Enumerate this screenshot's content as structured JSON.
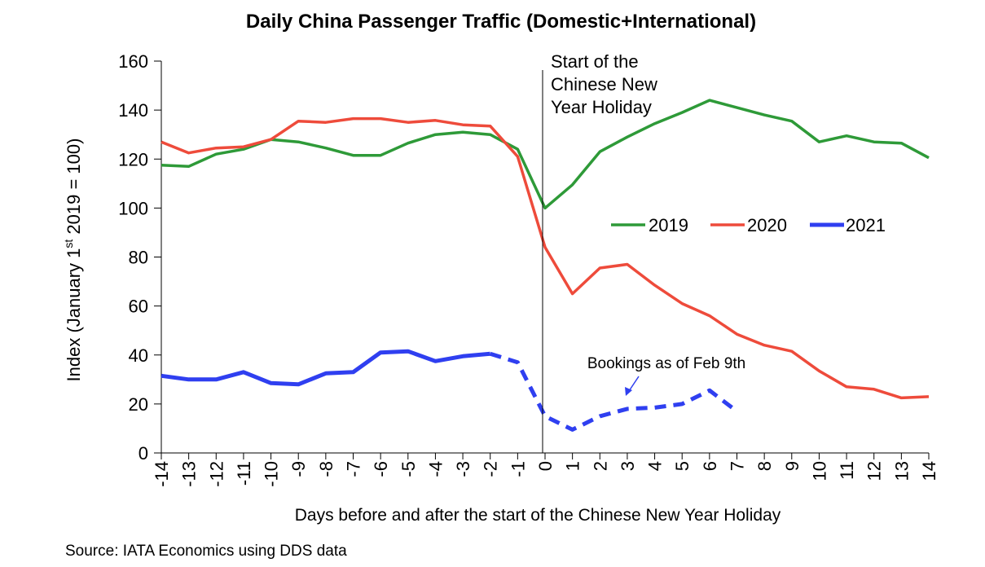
{
  "chart_data": {
    "type": "line",
    "title": "Daily China Passenger Traffic (Domestic+International)",
    "xlabel": "Days before and after the start of the Chinese New Year Holiday",
    "ylabel_parts": {
      "pre": "Index (January 1",
      "sup": "st",
      "post": " 2019 = 100)"
    },
    "ylim": [
      0,
      160
    ],
    "yticks": [
      "0",
      "20",
      "40",
      "60",
      "80",
      "100",
      "120",
      "140",
      "160"
    ],
    "x": [
      -14,
      -13,
      -12,
      -11,
      -10,
      -9,
      -8,
      -7,
      -6,
      -5,
      -4,
      -3,
      -2,
      -1,
      0,
      1,
      2,
      3,
      4,
      5,
      6,
      7,
      8,
      9,
      10,
      11,
      12,
      13,
      14
    ],
    "xticks": [
      "-14",
      "-13",
      "-12",
      "-11",
      "-10",
      "-9",
      "-8",
      "-7",
      "-6",
      "-5",
      "-4",
      "-3",
      "-2",
      "-1",
      "0",
      "1",
      "2",
      "3",
      "4",
      "5",
      "6",
      "7",
      "8",
      "9",
      "10",
      "11",
      "12",
      "13",
      "14"
    ],
    "series": [
      {
        "name": "2019",
        "color": "#2e9a38",
        "values": [
          117.5,
          117,
          122,
          124,
          128,
          127,
          124.5,
          121.5,
          121.5,
          126.5,
          130,
          131,
          130,
          124,
          100,
          109.5,
          123,
          129,
          134.5,
          139,
          144,
          141,
          138,
          135.5,
          127,
          129.5,
          127,
          126.5,
          120.5
        ]
      },
      {
        "name": "2020",
        "color": "#ee4b3b",
        "values": [
          127,
          122.5,
          124.5,
          125,
          128,
          135.5,
          135,
          136.5,
          136.5,
          135,
          135.8,
          134,
          133.5,
          121,
          84,
          65,
          75.5,
          77,
          68.5,
          61,
          56,
          48.5,
          44,
          41.5,
          33.5,
          27,
          26,
          22.5,
          23
        ]
      },
      {
        "name": "2021",
        "color": "#2f3ff0",
        "solid_values": [
          31.5,
          30,
          30,
          33,
          28.5,
          28,
          32.5,
          33,
          41,
          41.5,
          37.5,
          39.5,
          40.5
        ],
        "booking_x": [
          -2,
          -1,
          0,
          1,
          2,
          3,
          4,
          5,
          6,
          7
        ],
        "booking_values": [
          40.5,
          37,
          15,
          9.5,
          15,
          18,
          18.5,
          20,
          25.5,
          17
        ]
      }
    ],
    "vline": {
      "x": 0,
      "label_lines": [
        "Start of the",
        "Chinese New",
        "Year Holiday"
      ]
    },
    "annotation": "Bookings as of Feb 9th",
    "legend_position": "center-right",
    "source": "Source: IATA Economics using DDS data"
  }
}
